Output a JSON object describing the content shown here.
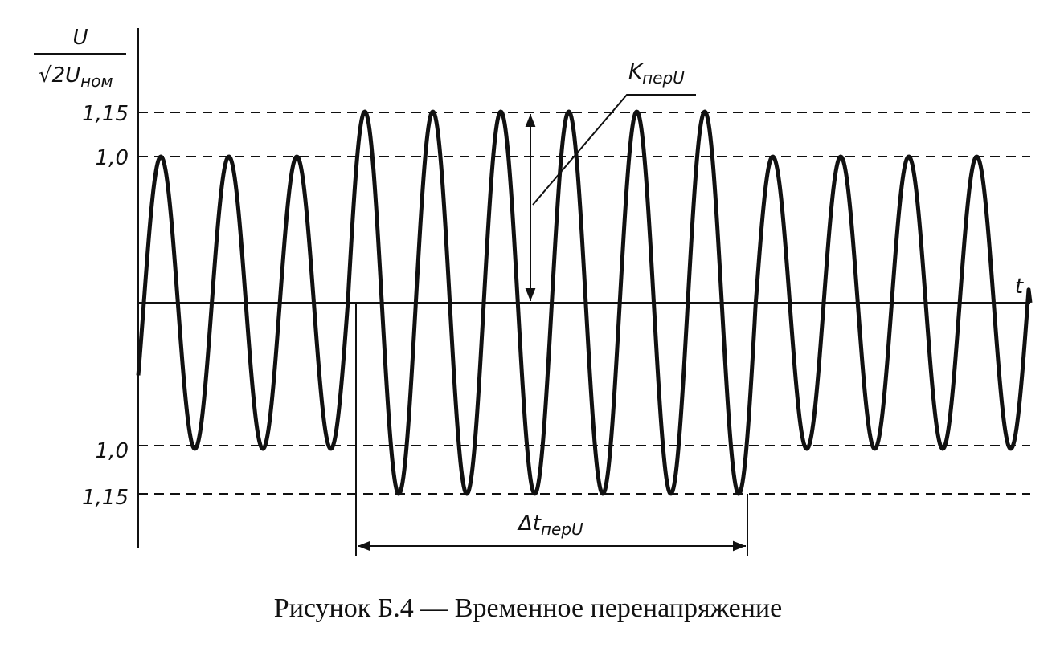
{
  "axis": {
    "y_label": {
      "numerator": "U",
      "denominator": "√2U",
      "denominator_sub": "ном"
    },
    "x_label": "t",
    "upper_levels": [
      "1,15",
      "1,0"
    ],
    "lower_levels": [
      "1,0",
      "1,15"
    ]
  },
  "annotations": {
    "overvoltage_factor": {
      "main": "K",
      "sub": "перU"
    },
    "duration": {
      "main": "Δt",
      "sub": "перU"
    }
  },
  "caption": "Рисунок Б.4 — Временное перенапряжение"
}
